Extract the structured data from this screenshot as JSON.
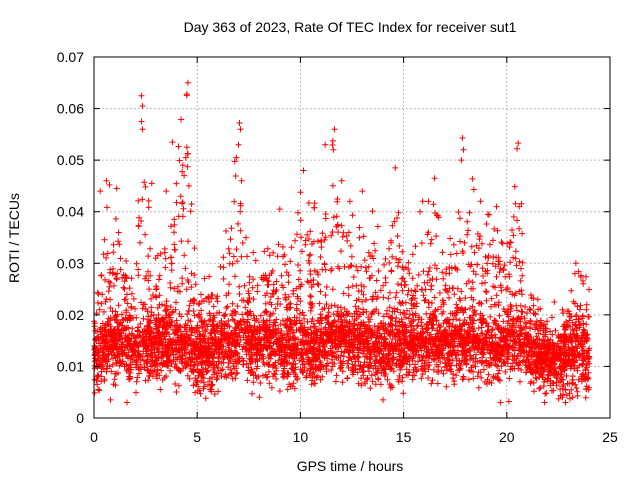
{
  "chart_data": {
    "type": "scatter",
    "title": "Day 363 of 2023, Rate Of TEC Index for receiver sut1",
    "xlabel": "GPS time / hours",
    "ylabel": "ROTI / TECUs",
    "xlim": [
      0,
      25
    ],
    "ylim": [
      0,
      0.07
    ],
    "x_ticks": [
      "0",
      "5",
      "10",
      "15",
      "20",
      "25"
    ],
    "y_ticks": [
      "0",
      "0.01",
      "0.02",
      "0.03",
      "0.04",
      "0.05",
      "0.06",
      "0.07"
    ],
    "grid": true,
    "marker": "plus",
    "color": "#ff0000",
    "series": [
      {
        "x_range": [
          0,
          24
        ],
        "baseline": [
          [
            0.0,
            0.011
          ],
          [
            0.5,
            0.014
          ],
          [
            1.0,
            0.015
          ],
          [
            1.5,
            0.014
          ],
          [
            2.0,
            0.013
          ],
          [
            2.5,
            0.014
          ],
          [
            3.0,
            0.013
          ],
          [
            3.5,
            0.014
          ],
          [
            4.0,
            0.013
          ],
          [
            4.5,
            0.014
          ],
          [
            5.0,
            0.012
          ],
          [
            5.5,
            0.012
          ],
          [
            6.0,
            0.013
          ],
          [
            6.5,
            0.014
          ],
          [
            7.0,
            0.015
          ],
          [
            7.5,
            0.014
          ],
          [
            8.0,
            0.013
          ],
          [
            8.5,
            0.014
          ],
          [
            9.0,
            0.013
          ],
          [
            9.5,
            0.013
          ],
          [
            10.0,
            0.014
          ],
          [
            10.5,
            0.013
          ],
          [
            11.0,
            0.014
          ],
          [
            11.5,
            0.015
          ],
          [
            12.0,
            0.015
          ],
          [
            12.5,
            0.014
          ],
          [
            13.0,
            0.014
          ],
          [
            13.5,
            0.013
          ],
          [
            14.0,
            0.013
          ],
          [
            14.5,
            0.013
          ],
          [
            15.0,
            0.013
          ],
          [
            15.5,
            0.014
          ],
          [
            16.0,
            0.014
          ],
          [
            16.5,
            0.015
          ],
          [
            17.0,
            0.014
          ],
          [
            17.5,
            0.014
          ],
          [
            18.0,
            0.014
          ],
          [
            18.5,
            0.014
          ],
          [
            19.0,
            0.013
          ],
          [
            19.5,
            0.013
          ],
          [
            20.0,
            0.014
          ],
          [
            20.5,
            0.015
          ],
          [
            21.0,
            0.013
          ],
          [
            21.5,
            0.012
          ],
          [
            22.0,
            0.011
          ],
          [
            22.5,
            0.011
          ],
          [
            23.0,
            0.011
          ],
          [
            23.5,
            0.012
          ],
          [
            24.0,
            0.011
          ]
        ],
        "upper_envelope": [
          [
            0.0,
            0.022
          ],
          [
            0.5,
            0.044
          ],
          [
            1.0,
            0.04
          ],
          [
            1.5,
            0.037
          ],
          [
            2.0,
            0.03
          ],
          [
            2.3,
            0.062
          ],
          [
            2.7,
            0.04
          ],
          [
            3.0,
            0.033
          ],
          [
            3.5,
            0.038
          ],
          [
            4.0,
            0.053
          ],
          [
            4.5,
            0.065
          ],
          [
            5.0,
            0.028
          ],
          [
            5.5,
            0.028
          ],
          [
            6.0,
            0.028
          ],
          [
            6.5,
            0.039
          ],
          [
            7.0,
            0.057
          ],
          [
            7.5,
            0.035
          ],
          [
            8.0,
            0.032
          ],
          [
            8.5,
            0.033
          ],
          [
            9.0,
            0.039
          ],
          [
            9.5,
            0.036
          ],
          [
            10.0,
            0.048
          ],
          [
            10.5,
            0.041
          ],
          [
            11.0,
            0.044
          ],
          [
            11.5,
            0.056
          ],
          [
            12.0,
            0.05
          ],
          [
            12.5,
            0.04
          ],
          [
            13.0,
            0.036
          ],
          [
            13.5,
            0.043
          ],
          [
            14.0,
            0.035
          ],
          [
            14.5,
            0.048
          ],
          [
            15.0,
            0.036
          ],
          [
            15.5,
            0.032
          ],
          [
            16.0,
            0.044
          ],
          [
            16.5,
            0.046
          ],
          [
            17.0,
            0.035
          ],
          [
            17.5,
            0.035
          ],
          [
            17.9,
            0.054
          ],
          [
            18.5,
            0.044
          ],
          [
            19.0,
            0.04
          ],
          [
            19.5,
            0.038
          ],
          [
            20.0,
            0.035
          ],
          [
            20.5,
            0.053
          ],
          [
            21.0,
            0.026
          ],
          [
            21.5,
            0.022
          ],
          [
            22.0,
            0.021
          ],
          [
            22.5,
            0.02
          ],
          [
            23.0,
            0.023
          ],
          [
            23.5,
            0.03
          ],
          [
            24.0,
            0.027
          ]
        ],
        "min_value": 0.003,
        "max_value": 0.065
      }
    ],
    "outliers": [
      [
        2.3,
        0.0625
      ],
      [
        2.35,
        0.0605
      ],
      [
        2.3,
        0.0575
      ],
      [
        2.35,
        0.056
      ],
      [
        4.55,
        0.065
      ],
      [
        4.5,
        0.0628
      ],
      [
        4.5,
        0.0525
      ],
      [
        4.45,
        0.0505
      ],
      [
        3.8,
        0.0535
      ],
      [
        4.3,
        0.049
      ],
      [
        4.6,
        0.045
      ],
      [
        7.05,
        0.0572
      ],
      [
        7.1,
        0.056
      ],
      [
        7.0,
        0.053
      ],
      [
        6.9,
        0.0505
      ],
      [
        7.15,
        0.046
      ],
      [
        11.65,
        0.056
      ],
      [
        11.2,
        0.053
      ],
      [
        11.6,
        0.052
      ],
      [
        10.15,
        0.048
      ],
      [
        12.0,
        0.046
      ],
      [
        13.0,
        0.044
      ],
      [
        14.6,
        0.0485
      ],
      [
        17.85,
        0.0543
      ],
      [
        17.9,
        0.052
      ],
      [
        17.8,
        0.05
      ],
      [
        16.5,
        0.0465
      ],
      [
        18.4,
        0.0443
      ],
      [
        20.55,
        0.0533
      ],
      [
        20.6,
        0.041
      ],
      [
        0.6,
        0.046
      ],
      [
        0.75,
        0.0452
      ],
      [
        0.3,
        0.044
      ],
      [
        1.1,
        0.0445
      ],
      [
        2.8,
        0.0455
      ],
      [
        3.5,
        0.044
      ],
      [
        4.2,
        0.043
      ],
      [
        9.0,
        0.0405
      ],
      [
        12.4,
        0.042
      ],
      [
        15.8,
        0.04
      ],
      [
        16.2,
        0.042
      ],
      [
        19.5,
        0.041
      ],
      [
        23.35,
        0.03
      ],
      [
        23.3,
        0.028
      ],
      [
        22.3,
        0.0225
      ],
      [
        21.5,
        0.023
      ],
      [
        0.8,
        0.0035
      ],
      [
        1.6,
        0.003
      ],
      [
        14.0,
        0.0035
      ],
      [
        19.7,
        0.003
      ],
      [
        20.1,
        0.0032
      ]
    ]
  }
}
